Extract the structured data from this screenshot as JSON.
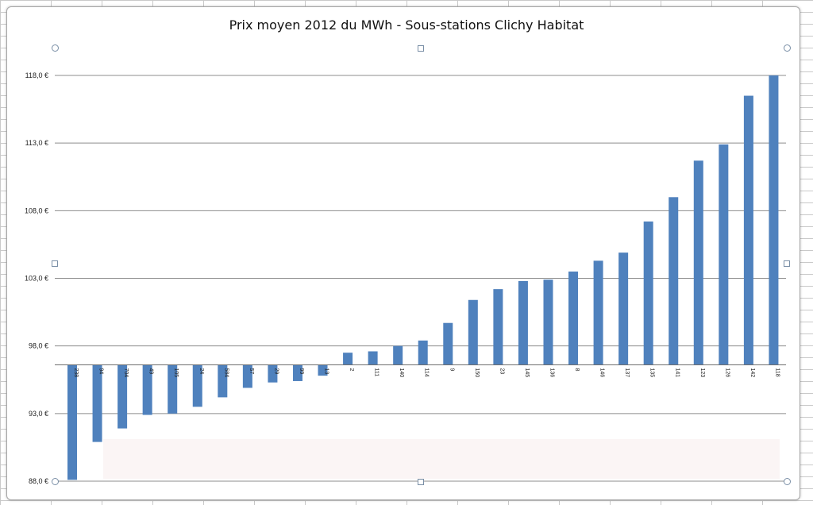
{
  "chart_data": {
    "type": "bar",
    "title": "Prix moyen 2012 du MWh - Sous-stations Clichy Habitat",
    "xlabel": "",
    "ylabel": "",
    "ylim": [
      88.0,
      120.0
    ],
    "baseline": 96.6,
    "y_ticks": [
      "88,0 €",
      "93,0 €",
      "98,0 €",
      "103,0 €",
      "108,0 €",
      "113,0 €",
      "118,0 €"
    ],
    "y_tick_values": [
      88,
      93,
      98,
      103,
      108,
      113,
      118
    ],
    "grid": true,
    "legend": "none",
    "bar_color": "#4f81bd",
    "categories": [
      "238",
      "94",
      "704",
      "49",
      "105",
      "24",
      "584",
      "57",
      "29",
      "99",
      "13",
      "2",
      "111",
      "140",
      "114",
      "9",
      "150",
      "23",
      "145",
      "136",
      "8",
      "146",
      "137",
      "135",
      "141",
      "123",
      "126",
      "142",
      "118"
    ],
    "values": [
      88.1,
      90.9,
      91.9,
      92.9,
      93.0,
      93.5,
      94.2,
      94.9,
      95.3,
      95.4,
      95.8,
      97.5,
      97.6,
      98.0,
      98.4,
      99.7,
      101.4,
      102.2,
      102.8,
      102.9,
      103.5,
      104.3,
      104.9,
      107.2,
      109.0,
      111.7,
      112.9,
      116.5,
      118.0
    ]
  }
}
